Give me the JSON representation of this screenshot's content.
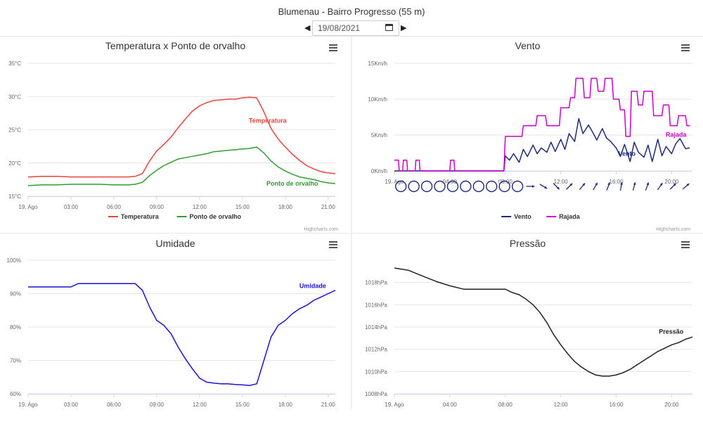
{
  "header": {
    "title": "Blumenau - Bairro Progresso (55 m)",
    "date": "19/08/2021"
  },
  "credits": "Highcharts.com",
  "chart_data": [
    {
      "id": "temp",
      "type": "line",
      "title": "Temperatura x Ponto de orvalho",
      "ylim": [
        15,
        35
      ],
      "yticks": [
        15,
        20,
        25,
        30,
        35
      ],
      "ytick_labels": [
        "15°C",
        "20°C",
        "25°C",
        "30°C",
        "35°C"
      ],
      "xlim": [
        0,
        21.5
      ],
      "xticks": [
        0,
        3,
        6,
        9,
        12,
        15,
        18,
        21
      ],
      "xtick_labels": [
        "19. Ago",
        "03:00",
        "06:00",
        "09:00",
        "12:00",
        "15:00",
        "18:00",
        "21:00"
      ],
      "legend": [
        "Temperatura",
        "Ponto de orvalho"
      ],
      "series": [
        {
          "name": "Temperatura",
          "color": "#e8433f",
          "label": "Temperatura",
          "x": [
            0,
            1,
            2,
            3,
            4,
            5,
            6,
            7,
            7.5,
            8,
            8.5,
            9,
            9.5,
            10,
            10.5,
            11,
            11.5,
            12,
            12.5,
            13,
            13.5,
            14,
            14.5,
            15,
            15.5,
            16,
            16.5,
            17,
            17.5,
            18,
            18.5,
            19,
            19.5,
            20,
            20.5,
            21,
            21.5
          ],
          "y": [
            17.9,
            18,
            18,
            17.9,
            17.9,
            17.9,
            17.9,
            17.9,
            18,
            18.4,
            20.3,
            21.8,
            22.8,
            23.9,
            25.3,
            26.6,
            27.8,
            28.6,
            29.1,
            29.4,
            29.5,
            29.6,
            29.6,
            29.8,
            29.9,
            29.8,
            27.7,
            25.2,
            23.6,
            22.4,
            21.3,
            20.4,
            19.6,
            19.1,
            18.7,
            18.5,
            18.4
          ]
        },
        {
          "name": "Ponto de orvalho",
          "color": "#2f9e2f",
          "label": "Ponto de orvalho",
          "x": [
            0,
            1,
            2,
            3,
            4,
            5,
            6,
            7,
            7.5,
            8,
            8.5,
            9,
            9.5,
            10,
            10.5,
            11,
            11.5,
            12,
            12.5,
            13,
            13.5,
            14,
            14.5,
            15,
            15.5,
            16,
            16.5,
            17,
            17.5,
            18,
            18.5,
            19,
            19.5,
            20,
            20.5,
            21,
            21.5
          ],
          "y": [
            16.6,
            16.7,
            16.7,
            16.8,
            16.8,
            16.8,
            16.7,
            16.7,
            16.8,
            17.1,
            18.1,
            18.9,
            19.6,
            20.1,
            20.6,
            20.8,
            21,
            21.2,
            21.4,
            21.7,
            21.8,
            21.9,
            22,
            22.1,
            22.2,
            22.4,
            21.5,
            20.3,
            19.4,
            18.8,
            18.3,
            17.9,
            17.7,
            17.5,
            17.2,
            17,
            16.9
          ]
        }
      ]
    },
    {
      "id": "wind",
      "type": "line",
      "title": "Vento",
      "ylim": [
        0,
        15
      ],
      "yticks": [
        0,
        5,
        10,
        15
      ],
      "ytick_labels": [
        "0Km/h",
        "5Km/h",
        "10Km/h",
        "15Km/h"
      ],
      "xlim": [
        0,
        21.5
      ],
      "xticks": [
        0,
        4,
        8,
        12,
        16,
        20
      ],
      "xtick_labels": [
        "19. Ago",
        "04:00",
        "08:00",
        "12:00",
        "16:00",
        "20:00"
      ],
      "legend": [
        "Vento",
        "Rajada"
      ],
      "direction_arrows_deg": [
        null,
        null,
        null,
        null,
        null,
        null,
        null,
        null,
        null,
        null,
        270,
        300,
        315,
        225,
        220,
        210,
        200,
        190,
        195,
        200,
        215,
        225,
        230
      ],
      "series": [
        {
          "name": "Vento",
          "color": "#1f2b7a",
          "label": "Vento",
          "x": [
            0,
            7.9,
            8,
            8.3,
            8.6,
            9,
            9.3,
            9.6,
            10,
            10.3,
            10.6,
            11,
            11.3,
            11.6,
            12,
            12.3,
            12.6,
            13,
            13.3,
            13.6,
            14,
            14.3,
            14.6,
            15,
            15.3,
            15.6,
            16,
            16.3,
            16.6,
            17,
            17.3,
            17.6,
            18,
            18.3,
            18.6,
            19,
            19.3,
            19.6,
            20,
            20.3,
            20.6,
            21,
            21.3
          ],
          "y": [
            0,
            0,
            2.1,
            1.5,
            2.4,
            1.2,
            3,
            2,
            3.6,
            2.4,
            3.2,
            2.6,
            4,
            2.7,
            4.4,
            3,
            5.2,
            4.1,
            7.3,
            5.2,
            6.4,
            5.4,
            4.3,
            5.9,
            4.6,
            4.1,
            3.2,
            2,
            3.7,
            1.3,
            4,
            2.6,
            1.9,
            3.6,
            1.3,
            4.4,
            2.1,
            3.4,
            2.4,
            3.8,
            4.5,
            3.1,
            3.2
          ]
        },
        {
          "name": "Rajada",
          "color": "#cc00cc",
          "label": "Rajada",
          "x": [
            0,
            0.3,
            0.35,
            0.6,
            0.65,
            0.9,
            0.95,
            1.5,
            1.55,
            1.8,
            1.85,
            4,
            4.05,
            4.3,
            4.35,
            7.9,
            8,
            9.2,
            9.3,
            10.2,
            10.3,
            10.9,
            11,
            11.9,
            12,
            12.6,
            12.7,
            13,
            13.1,
            13.6,
            13.7,
            14.1,
            14.2,
            14.6,
            14.7,
            15.1,
            15.2,
            15.7,
            15.8,
            16.2,
            16.3,
            16.6,
            16.7,
            17,
            17.1,
            17.5,
            17.6,
            17.9,
            18,
            18.6,
            18.7,
            19.3,
            19.4,
            19.8,
            19.9,
            20.4,
            20.5,
            21,
            21.1,
            21.3
          ],
          "y": [
            1.5,
            1.5,
            0,
            0,
            1.5,
            1.5,
            0,
            0,
            1.5,
            1.5,
            0,
            0,
            1.5,
            1.5,
            0,
            0,
            4.8,
            4.8,
            6.3,
            6.3,
            7.7,
            7.7,
            6.3,
            6.3,
            8.8,
            8.8,
            10.2,
            10.2,
            12.9,
            12.9,
            10.2,
            10.2,
            12.9,
            12.9,
            11.1,
            11.1,
            12.9,
            12.9,
            10,
            10,
            8.5,
            8.5,
            4.8,
            4.8,
            11.1,
            11.1,
            9.2,
            9.2,
            11.1,
            11.1,
            7.7,
            7.7,
            9.2,
            9.2,
            6.3,
            6.3,
            7.7,
            7.7,
            6.3,
            6.3
          ]
        }
      ]
    },
    {
      "id": "hum",
      "type": "line",
      "title": "Umidade",
      "ylim": [
        60,
        100
      ],
      "yticks": [
        60,
        70,
        80,
        90,
        100
      ],
      "ytick_labels": [
        "60%",
        "70%",
        "80%",
        "90%",
        "100%"
      ],
      "xlim": [
        0,
        21.5
      ],
      "xticks": [
        0,
        3,
        6,
        9,
        12,
        15,
        18,
        21
      ],
      "xtick_labels": [
        "19. Ago",
        "03:00",
        "06:00",
        "09:00",
        "12:00",
        "15:00",
        "18:00",
        "21:00"
      ],
      "series": [
        {
          "name": "Umidade",
          "color": "#1a12d6",
          "label": "Umidade",
          "x": [
            0,
            1,
            2,
            3,
            3.2,
            3.5,
            4,
            5,
            6,
            7,
            7.5,
            8,
            8.5,
            9,
            9.5,
            10,
            10.5,
            11,
            11.5,
            12,
            12.5,
            13,
            13.5,
            14,
            14.5,
            15,
            15.5,
            16,
            16.5,
            17,
            17.5,
            18,
            18.5,
            19,
            19.5,
            20,
            20.5,
            21,
            21.5
          ],
          "y": [
            92,
            92,
            92,
            92,
            92.4,
            93,
            93,
            93,
            93,
            93,
            93,
            91,
            86,
            82,
            80.5,
            78,
            74,
            70.5,
            67.5,
            64.7,
            63.5,
            63.2,
            63,
            63,
            62.8,
            62.7,
            62.5,
            63,
            70,
            77,
            80.5,
            82,
            84,
            85.5,
            86.5,
            88,
            89,
            90,
            91
          ]
        }
      ]
    },
    {
      "id": "pres",
      "type": "line",
      "title": "Pressão",
      "ylim": [
        1008,
        1020
      ],
      "yticks": [
        1008,
        1010,
        1012,
        1014,
        1016,
        1018
      ],
      "ytick_labels": [
        "1008hPa",
        "1010hPa",
        "1012hPa",
        "1014hPa",
        "1016hPa",
        "1018hPa"
      ],
      "xlim": [
        0,
        21.5
      ],
      "xticks": [
        0,
        4,
        8,
        12,
        16,
        20
      ],
      "xtick_labels": [
        "19. Ago",
        "04:00",
        "08:00",
        "12:00",
        "16:00",
        "20:00"
      ],
      "series": [
        {
          "name": "Pressão",
          "color": "#222222",
          "label": "Pressão",
          "x": [
            0,
            1,
            2,
            3,
            4,
            5,
            6,
            7,
            8,
            8.5,
            9,
            9.5,
            10,
            10.5,
            11,
            11.5,
            12,
            12.5,
            13,
            13.5,
            14,
            14.5,
            15,
            15.5,
            16,
            16.5,
            17,
            17.5,
            18,
            18.5,
            19,
            19.5,
            20,
            20.5,
            21,
            21.5
          ],
          "y": [
            1019.3,
            1019.1,
            1018.6,
            1018.1,
            1017.7,
            1017.4,
            1017.4,
            1017.4,
            1017.4,
            1017.1,
            1016.9,
            1016.5,
            1016,
            1015.3,
            1014.4,
            1013.3,
            1012.4,
            1011.6,
            1010.9,
            1010.4,
            1010,
            1009.7,
            1009.6,
            1009.6,
            1009.7,
            1009.9,
            1010.2,
            1010.6,
            1011,
            1011.4,
            1011.8,
            1012.1,
            1012.4,
            1012.6,
            1012.9,
            1013.1
          ]
        }
      ]
    }
  ]
}
